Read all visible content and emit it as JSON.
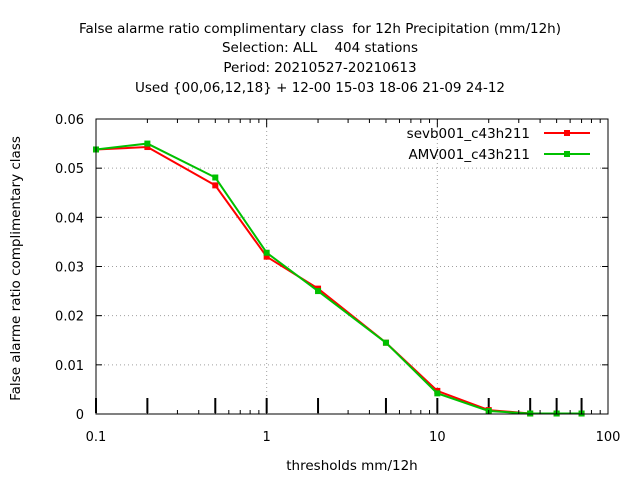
{
  "title_lines": [
    "False alarme ratio complimentary class  for 12h Precipitation (mm/12h)",
    "Selection: ALL    404 stations",
    "Period: 20210527-20210613",
    "Used {00,06,12,18} + 12-00 15-03 18-06 21-09 24-12"
  ],
  "chart_data": {
    "type": "line",
    "xlabel": "thresholds mm/12h",
    "ylabel": "False alarme ratio complimentary class",
    "xscale": "log",
    "xlim": [
      0.1,
      100
    ],
    "ylim": [
      0,
      0.06
    ],
    "x_ticks": [
      0.1,
      1,
      10,
      100
    ],
    "x_tick_labels": [
      "0.1",
      "1",
      "10",
      "100"
    ],
    "y_ticks": [
      0,
      0.01,
      0.02,
      0.03,
      0.04,
      0.05,
      0.06
    ],
    "y_tick_labels": [
      "0",
      "0.01",
      "0.02",
      "0.03",
      "0.04",
      "0.05",
      "0.06"
    ],
    "grid": true,
    "legend_position": "top-right",
    "threshold_marks": [
      0.1,
      0.2,
      0.5,
      1,
      2,
      5,
      10,
      20,
      35,
      50,
      70
    ],
    "x": [
      0.1,
      0.2,
      0.5,
      1,
      2,
      5,
      10,
      20,
      35,
      50,
      70
    ],
    "series": [
      {
        "name": "sevb001_c43h211",
        "color": "#ff0000",
        "values": [
          0.0538,
          0.0543,
          0.0465,
          0.032,
          0.0255,
          0.0145,
          0.0047,
          0.0008,
          0.0001,
          0.0001,
          0.0001
        ]
      },
      {
        "name": "AMV001_c43h211",
        "color": "#00c000",
        "values": [
          0.0538,
          0.055,
          0.0481,
          0.0328,
          0.025,
          0.0145,
          0.0042,
          0.0006,
          0.0001,
          0.0001,
          0.0001
        ]
      }
    ]
  }
}
